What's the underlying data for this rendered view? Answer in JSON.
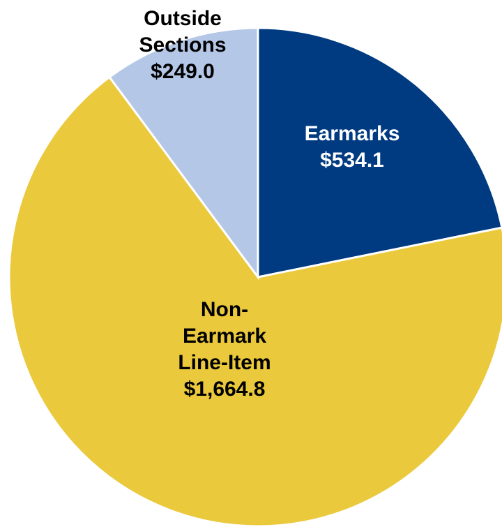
{
  "chart_data": {
    "type": "pie",
    "categories": [
      "Earmarks",
      "Non-Earmark Line-Item",
      "Outside Sections"
    ],
    "values": [
      534.1,
      1664.8,
      249.0
    ],
    "value_labels": [
      "$534.1",
      "$1,664.8",
      "$249.0"
    ],
    "colors": [
      "#003a80",
      "#ebc93c",
      "#b4c7e7"
    ],
    "label_colors": [
      "#ffffff",
      "#000000",
      "#000000"
    ]
  }
}
